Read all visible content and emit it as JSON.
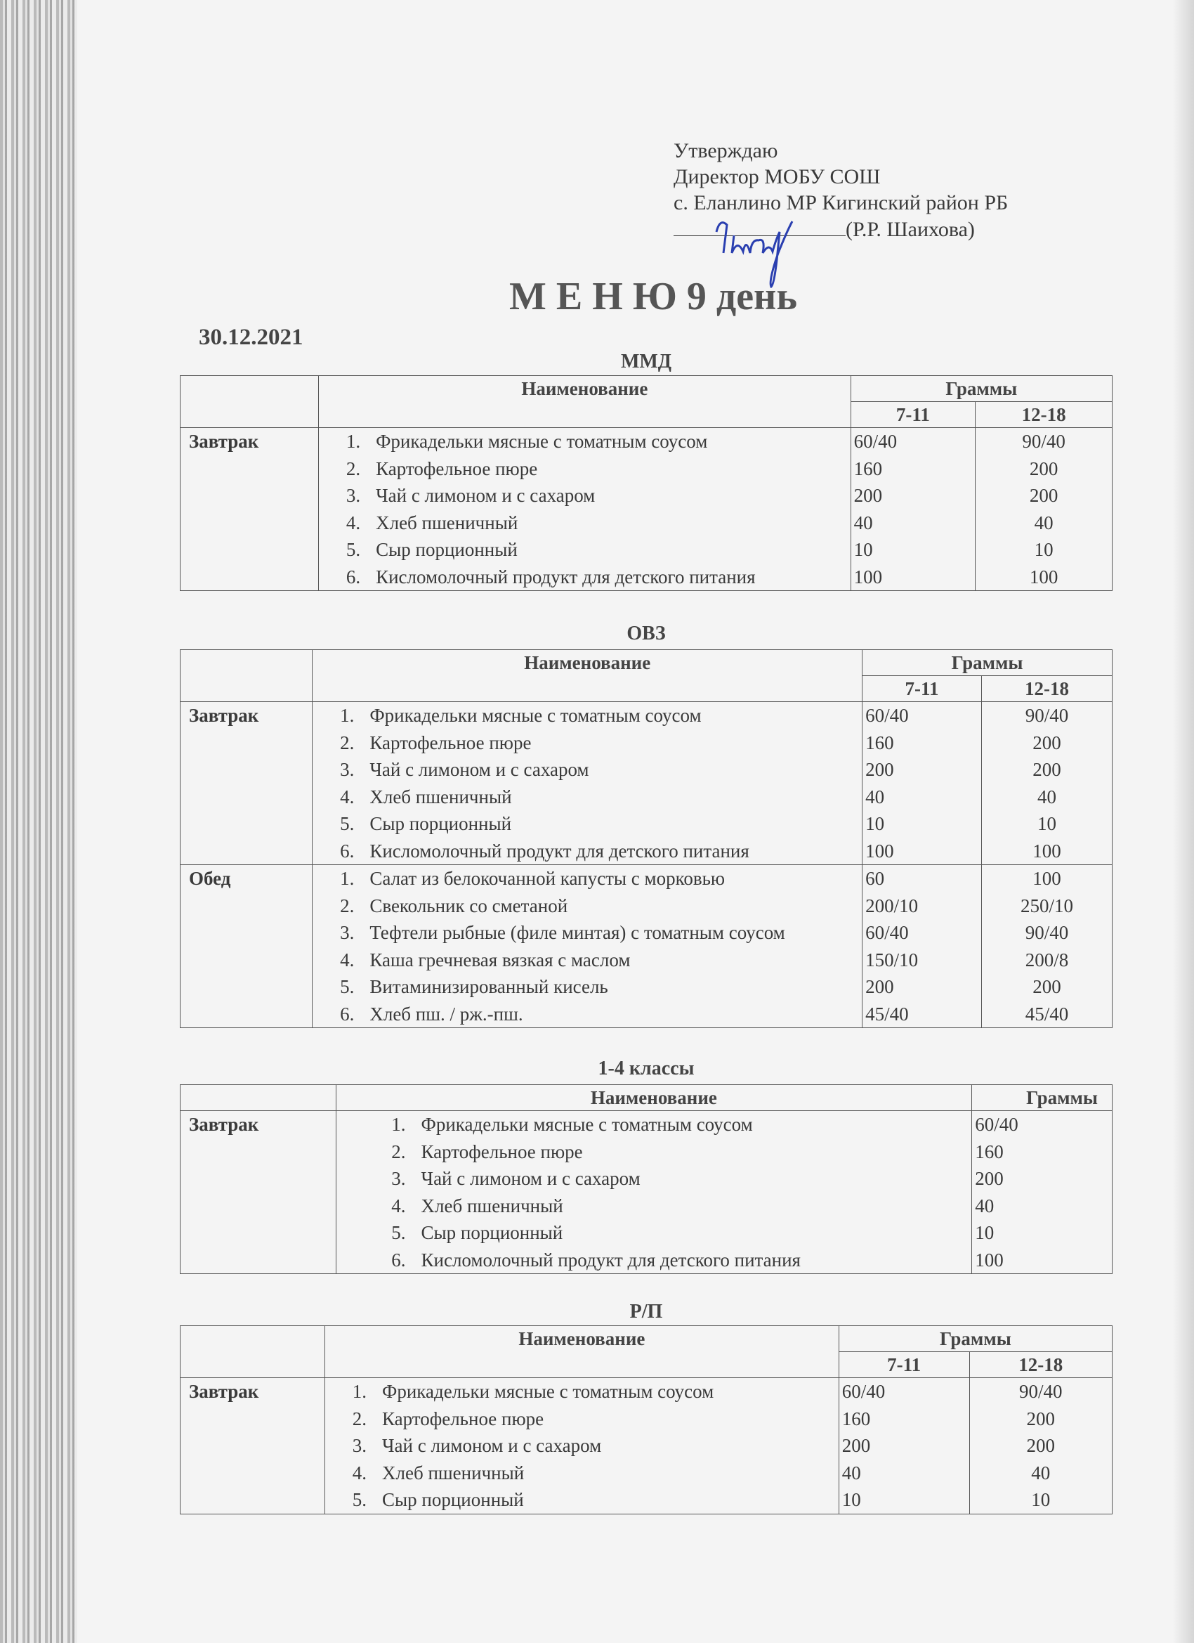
{
  "approval": {
    "line1": "Утверждаю",
    "line2": "Директор МОБУ СОШ",
    "line3": "с. Еланлино МР Кигинский район РБ",
    "signatory": "(Р.Р. Шаихова)",
    "signature_color": "#2a3fb0"
  },
  "title": "М Е Н Ю 9 день",
  "date": "30.12.2021",
  "header": {
    "name": "Наименование",
    "grams": "Граммы",
    "age1": "7-11",
    "age2": "12-18"
  },
  "sections": [
    {
      "caption": "ММД",
      "two_ages": true,
      "meals": [
        {
          "meal": "Завтрак",
          "items": [
            {
              "n": "1.",
              "name": "Фрикадельки  мясные с томатным соусом",
              "g1": "60/40",
              "g2": "90/40"
            },
            {
              "n": "2.",
              "name": "Картофельное пюре",
              "g1": "160",
              "g2": "200"
            },
            {
              "n": "3.",
              "name": "Чай с лимоном и с сахаром",
              "g1": "200",
              "g2": "200"
            },
            {
              "n": "4.",
              "name": "Хлеб пшеничный",
              "g1": "40",
              "g2": "40"
            },
            {
              "n": "5.",
              "name": "Сыр порционный",
              "g1": "10",
              "g2": "10"
            },
            {
              "n": "6.",
              "name": "Кисломолочный продукт для детского питания",
              "g1": "100",
              "g2": "100"
            }
          ]
        }
      ]
    },
    {
      "caption": "ОВЗ",
      "two_ages": true,
      "meals": [
        {
          "meal": "Завтрак",
          "items": [
            {
              "n": "1.",
              "name": "Фрикадельки  мясные с томатным соусом",
              "g1": "60/40",
              "g2": "90/40"
            },
            {
              "n": "2.",
              "name": "Картофельное пюре",
              "g1": "160",
              "g2": "200"
            },
            {
              "n": "3.",
              "name": "Чай с лимоном и с сахаром",
              "g1": "200",
              "g2": "200"
            },
            {
              "n": "4.",
              "name": "Хлеб пшеничный",
              "g1": "40",
              "g2": "40"
            },
            {
              "n": "5.",
              "name": "Сыр порционный",
              "g1": "10",
              "g2": "10"
            },
            {
              "n": "6.",
              "name": "Кисломолочный продукт для детского питания",
              "g1": "100",
              "g2": "100"
            }
          ]
        },
        {
          "meal": "Обед",
          "items": [
            {
              "n": "1.",
              "name": "Салат из белокочанной капусты с морковью",
              "g1": "60",
              "g2": "100"
            },
            {
              "n": "2.",
              "name": "Свекольник со сметаной",
              "g1": "200/10",
              "g2": "250/10"
            },
            {
              "n": "3.",
              "name": "Тефтели рыбные (филе минтая) с томатным соусом",
              "g1": "60/40",
              "g2": "90/40"
            },
            {
              "n": "4.",
              "name": "Каша гречневая вязкая с маслом",
              "g1": "150/10",
              "g2": "200/8"
            },
            {
              "n": "5.",
              "name": "Витаминизированный кисель",
              "g1": "200",
              "g2": "200"
            },
            {
              "n": "6.",
              "name": "Хлеб  пш. / рж.-пш.",
              "g1": "45/40",
              "g2": "45/40"
            }
          ]
        }
      ]
    },
    {
      "caption": "1-4 классы",
      "two_ages": false,
      "meals": [
        {
          "meal": "Завтрак",
          "items": [
            {
              "n": "1.",
              "name": "Фрикадельки  мясные с томатным соусом",
              "g1": "60/40"
            },
            {
              "n": "2.",
              "name": "Картофельное пюре",
              "g1": "160"
            },
            {
              "n": "3.",
              "name": "Чай с лимоном и с сахаром",
              "g1": "200"
            },
            {
              "n": "4.",
              "name": "Хлеб пшеничный",
              "g1": "40"
            },
            {
              "n": "5.",
              "name": "Сыр порционный",
              "g1": "10"
            },
            {
              "n": "6.",
              "name": "Кисломолочный продукт для детского питания",
              "g1": "100"
            }
          ]
        }
      ]
    },
    {
      "caption": "Р/П",
      "two_ages": true,
      "meals": [
        {
          "meal": "Завтрак",
          "items": [
            {
              "n": "1.",
              "name": "Фрикадельки  мясные с томатным соусом",
              "g1": "60/40",
              "g2": "90/40"
            },
            {
              "n": "2.",
              "name": "Картофельное пюре",
              "g1": "160",
              "g2": "200"
            },
            {
              "n": "3.",
              "name": "Чай с лимоном и с сахаром",
              "g1": "200",
              "g2": "200"
            },
            {
              "n": "4.",
              "name": "Хлеб пшеничный",
              "g1": "40",
              "g2": "40"
            },
            {
              "n": "5.",
              "name": "Сыр порционный",
              "g1": "10",
              "g2": "10"
            }
          ]
        }
      ]
    }
  ]
}
